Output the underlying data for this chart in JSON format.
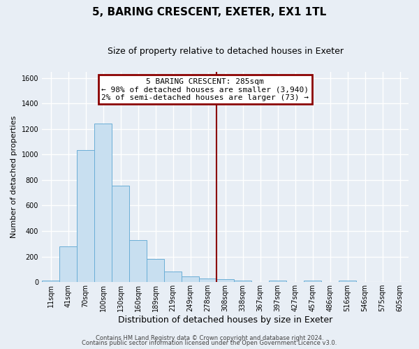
{
  "title": "5, BARING CRESCENT, EXETER, EX1 1TL",
  "subtitle": "Size of property relative to detached houses in Exeter",
  "xlabel": "Distribution of detached houses by size in Exeter",
  "ylabel": "Number of detached properties",
  "bin_labels": [
    "11sqm",
    "41sqm",
    "70sqm",
    "100sqm",
    "130sqm",
    "160sqm",
    "189sqm",
    "219sqm",
    "249sqm",
    "278sqm",
    "308sqm",
    "338sqm",
    "367sqm",
    "397sqm",
    "427sqm",
    "457sqm",
    "486sqm",
    "516sqm",
    "546sqm",
    "575sqm",
    "605sqm"
  ],
  "bar_heights": [
    10,
    280,
    1035,
    1245,
    755,
    330,
    180,
    82,
    47,
    30,
    22,
    10,
    0,
    10,
    0,
    10,
    0,
    12,
    0,
    0,
    0
  ],
  "bar_color": "#c8dff0",
  "bar_edge_color": "#6aaed6",
  "vline_index": 9,
  "vline_color": "#8b0000",
  "ylim": [
    0,
    1650
  ],
  "yticks": [
    0,
    200,
    400,
    600,
    800,
    1000,
    1200,
    1400,
    1600
  ],
  "annotation_title": "5 BARING CRESCENT: 285sqm",
  "annotation_line1": "← 98% of detached houses are smaller (3,940)",
  "annotation_line2": "2% of semi-detached houses are larger (73) →",
  "annotation_box_color": "#8b0000",
  "footer1": "Contains HM Land Registry data © Crown copyright and database right 2024.",
  "footer2": "Contains public sector information licensed under the Open Government Licence v3.0.",
  "background_color": "#e8eef5",
  "grid_color": "#ffffff",
  "title_fontsize": 11,
  "subtitle_fontsize": 9,
  "ylabel_fontsize": 8,
  "xlabel_fontsize": 9,
  "tick_fontsize": 7,
  "annotation_fontsize": 8,
  "footer_fontsize": 6
}
